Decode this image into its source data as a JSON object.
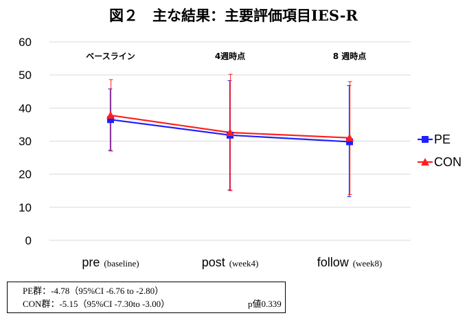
{
  "chart_data": {
    "type": "line",
    "title": "図２　主な結果：主要評価項目IES-R",
    "categories": [
      {
        "label": "pre",
        "sub": "(baseline)",
        "annotation": "ベースライン"
      },
      {
        "label": "post",
        "sub": "(week4)",
        "annotation": "4週時点"
      },
      {
        "label": "follow",
        "sub": "(week8)",
        "annotation": "8 週時点"
      }
    ],
    "ylim": [
      0,
      60
    ],
    "yticks": [
      0,
      10,
      20,
      30,
      40,
      50,
      60
    ],
    "grid": true,
    "legend_position": "right",
    "series": [
      {
        "name": "PE",
        "color": "#1f1fff",
        "marker": "square",
        "values": [
          36.5,
          31.8,
          29.8
        ],
        "err_low": [
          27.2,
          15.2,
          13.2
        ],
        "err_high": [
          45.8,
          48.3,
          46.8
        ]
      },
      {
        "name": "CON",
        "color": "#ff1f1f",
        "marker": "triangle",
        "values": [
          37.8,
          32.6,
          31.0
        ],
        "err_low": [
          27.0,
          15.0,
          13.8
        ],
        "err_high": [
          48.6,
          50.2,
          48.0
        ]
      }
    ]
  },
  "notes": {
    "line1": "PE群：-4.78（95%CI -6.76 to -2.80）",
    "line2": "CON群：-5.15（95%CI -7.30to -3.00）",
    "pvalue": "p値0.339"
  }
}
